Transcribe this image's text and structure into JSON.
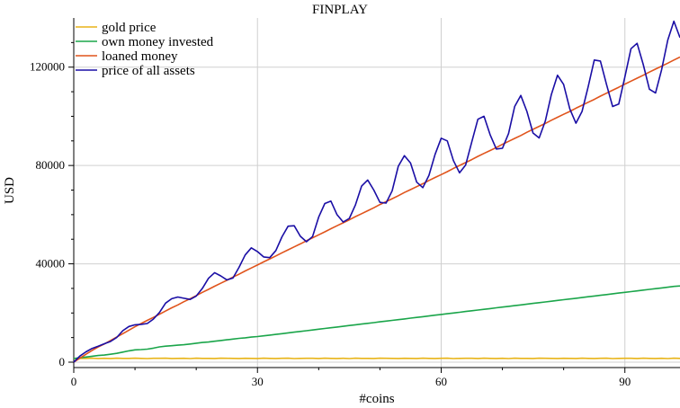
{
  "chart_data": {
    "type": "line",
    "title": "FINPLAY",
    "xlabel": "#coins",
    "ylabel": "USD",
    "xlim": [
      0,
      99
    ],
    "ylim": [
      0,
      140000
    ],
    "grid": true,
    "legend_position": "top-left",
    "x_ticks": [
      0,
      30,
      60,
      90
    ],
    "x_tick_labels": [
      "0",
      "30",
      "60",
      "90"
    ],
    "y_ticks": [
      0,
      40000,
      80000,
      120000
    ],
    "y_tick_labels": [
      "0",
      "40000",
      "80000",
      "120000"
    ],
    "x": [
      0,
      1,
      2,
      3,
      4,
      5,
      6,
      7,
      8,
      9,
      10,
      11,
      12,
      13,
      14,
      15,
      16,
      17,
      18,
      19,
      20,
      21,
      22,
      23,
      24,
      25,
      26,
      27,
      28,
      29,
      30,
      31,
      32,
      33,
      34,
      35,
      36,
      37,
      38,
      39,
      40,
      41,
      42,
      43,
      44,
      45,
      46,
      47,
      48,
      49,
      50,
      51,
      52,
      53,
      54,
      55,
      56,
      57,
      58,
      59,
      60,
      61,
      62,
      63,
      64,
      65,
      66,
      67,
      68,
      69,
      70,
      71,
      72,
      73,
      74,
      75,
      76,
      77,
      78,
      79,
      80,
      81,
      82,
      83,
      84,
      85,
      86,
      87,
      88,
      89,
      90,
      91,
      92,
      93,
      94,
      95,
      96,
      97,
      98,
      99
    ],
    "series": [
      {
        "name": "gold price",
        "color": "#e8b418",
        "values": [
          1500,
          1580,
          1540,
          1620,
          1510,
          1570,
          1490,
          1600,
          1550,
          1520,
          1610,
          1530,
          1480,
          1590,
          1560,
          1620,
          1500,
          1540,
          1580,
          1470,
          1600,
          1550,
          1520,
          1490,
          1610,
          1570,
          1530,
          1500,
          1580,
          1550,
          1490,
          1620,
          1540,
          1510,
          1570,
          1600,
          1480,
          1530,
          1590,
          1560,
          1500,
          1620,
          1540,
          1510,
          1580,
          1470,
          1600,
          1550,
          1520,
          1490,
          1610,
          1570,
          1530,
          1500,
          1580,
          1550,
          1490,
          1620,
          1540,
          1510,
          1570,
          1600,
          1480,
          1530,
          1590,
          1560,
          1500,
          1620,
          1540,
          1510,
          1580,
          1470,
          1600,
          1550,
          1520,
          1490,
          1610,
          1570,
          1530,
          1500,
          1580,
          1550,
          1490,
          1620,
          1540,
          1510,
          1570,
          1600,
          1480,
          1530,
          1590,
          1560,
          1500,
          1620,
          1540,
          1510,
          1580,
          1470,
          1600,
          1550
        ]
      },
      {
        "name": "own money invested",
        "color": "#1aa54a",
        "values": [
          1500,
          1800,
          2100,
          2400,
          2700,
          2900,
          3200,
          3600,
          4100,
          4600,
          5000,
          5100,
          5300,
          5700,
          6200,
          6500,
          6700,
          6900,
          7100,
          7400,
          7700,
          8000,
          8200,
          8500,
          8800,
          9100,
          9400,
          9700,
          9900,
          10200,
          10400,
          10700,
          11000,
          11300,
          11600,
          11900,
          12200,
          12500,
          12800,
          13100,
          13400,
          13700,
          14000,
          14300,
          14600,
          14900,
          15200,
          15500,
          15800,
          16100,
          16400,
          16700,
          17000,
          17300,
          17600,
          17900,
          18200,
          18500,
          18800,
          19100,
          19400,
          19700,
          20000,
          20300,
          20600,
          20900,
          21200,
          21500,
          21800,
          22100,
          22400,
          22700,
          23000,
          23300,
          23600,
          23900,
          24200,
          24500,
          24800,
          25100,
          25400,
          25700,
          26000,
          26300,
          26600,
          26900,
          27200,
          27500,
          27800,
          28100,
          28400,
          28700,
          29000,
          29300,
          29600,
          29900,
          30200,
          30500,
          30800,
          31000
        ]
      },
      {
        "name": "loaned money",
        "color": "#e0541c",
        "values": [
          0,
          1600,
          3200,
          4800,
          6200,
          7400,
          8800,
          10200,
          11600,
          13000,
          14400,
          15700,
          17000,
          18200,
          19500,
          20800,
          22100,
          23300,
          24600,
          25800,
          27100,
          28400,
          29600,
          30900,
          32100,
          33300,
          34600,
          35800,
          37100,
          38300,
          39500,
          40800,
          42000,
          43200,
          44500,
          45700,
          46900,
          48100,
          49400,
          50600,
          51800,
          53000,
          54300,
          55500,
          56700,
          57900,
          59200,
          60400,
          61600,
          62800,
          64100,
          65300,
          66500,
          67700,
          69000,
          70200,
          71400,
          72600,
          73900,
          75100,
          76300,
          77500,
          78800,
          80000,
          81200,
          82400,
          83700,
          84900,
          86100,
          87300,
          88600,
          89800,
          91000,
          92200,
          93500,
          94700,
          95900,
          97100,
          98400,
          99600,
          100800,
          102000,
          103300,
          104500,
          105700,
          106900,
          108200,
          109400,
          110600,
          111800,
          113100,
          114300,
          115500,
          116700,
          118000,
          119200,
          120400,
          121600,
          122900,
          124100
        ]
      },
      {
        "name": "price of all assets",
        "color": "#1a0ea5",
        "values": [
          0,
          2500,
          4200,
          5600,
          6500,
          7500,
          8400,
          10000,
          12800,
          14500,
          15200,
          15400,
          15700,
          17500,
          20200,
          24000,
          25800,
          26500,
          26000,
          25500,
          26900,
          30000,
          34100,
          36400,
          35100,
          33500,
          34200,
          38600,
          43600,
          46500,
          45000,
          42800,
          42500,
          45400,
          51000,
          55300,
          55500,
          51200,
          49000,
          51100,
          59000,
          64500,
          65500,
          60000,
          57000,
          58500,
          64000,
          71600,
          74100,
          70000,
          65000,
          64700,
          69700,
          79700,
          84000,
          81000,
          73200,
          71000,
          76000,
          84500,
          91100,
          90000,
          82000,
          77000,
          80200,
          89600,
          98800,
          100000,
          92500,
          86700,
          87000,
          93000,
          104000,
          108500,
          102000,
          93200,
          91200,
          98000,
          108900,
          116700,
          113000,
          103000,
          97200,
          102000,
          112000,
          122900,
          122500,
          113000,
          104000,
          105000,
          116000,
          127500,
          129700,
          121000,
          111000,
          109500,
          119000,
          131000,
          138700,
          132000
        ]
      }
    ]
  }
}
